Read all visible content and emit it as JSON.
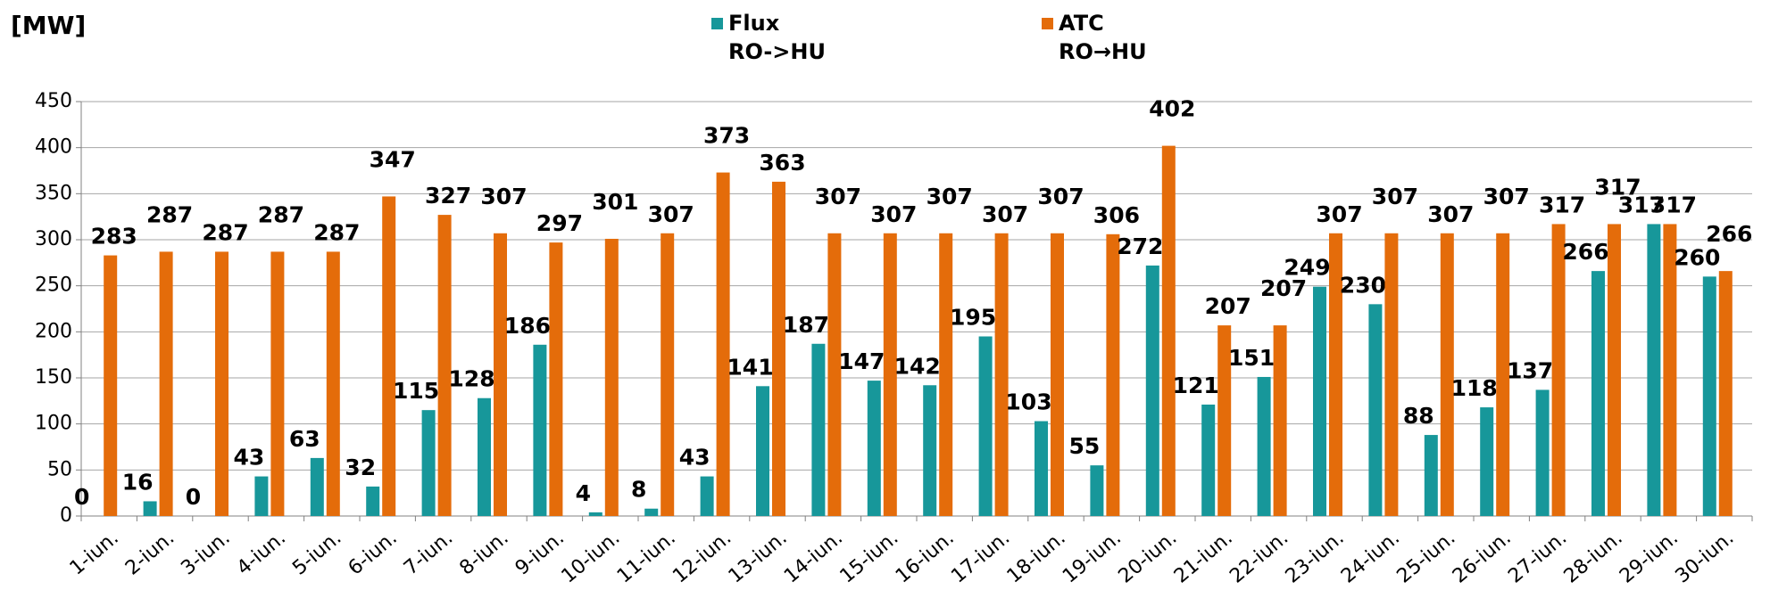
{
  "chart_data": {
    "type": "bar",
    "ylabel": "[MW]",
    "categories": [
      "1-iun.",
      "2-iun.",
      "3-iun.",
      "4-iun.",
      "5-iun.",
      "6-iun.",
      "7-iun.",
      "8-iun.",
      "9-iun.",
      "10-iun.",
      "11-iun.",
      "12-iun.",
      "13-iun.",
      "14-iun.",
      "15-iun.",
      "16-iun.",
      "17-iun.",
      "18-iun.",
      "19-iun.",
      "20-iun.",
      "21-iun.",
      "22-iun.",
      "23-iun.",
      "24-iun.",
      "25-iun.",
      "26-iun.",
      "27-iun.",
      "28-iun.",
      "29-iun.",
      "30-iun."
    ],
    "series": [
      {
        "name": "Flux\nRO->HU",
        "color": "#17979a",
        "values": [
          0,
          16,
          0,
          43,
          63,
          32,
          115,
          128,
          186,
          4,
          8,
          43,
          141,
          187,
          147,
          142,
          195,
          103,
          55,
          272,
          121,
          151,
          249,
          230,
          88,
          118,
          137,
          266,
          317,
          260
        ]
      },
      {
        "name": "ATC\nRO→HU",
        "color": "#e46c0a",
        "values": [
          283,
          287,
          287,
          287,
          287,
          347,
          327,
          307,
          297,
          301,
          307,
          373,
          363,
          307,
          307,
          307,
          307,
          307,
          306,
          402,
          207,
          207,
          307,
          307,
          307,
          307,
          317,
          317,
          317,
          266
        ]
      }
    ],
    "ylim": [
      0,
      450
    ],
    "yticks": [
      0,
      50,
      100,
      150,
      200,
      250,
      300,
      350,
      400,
      450
    ],
    "grid": true
  }
}
